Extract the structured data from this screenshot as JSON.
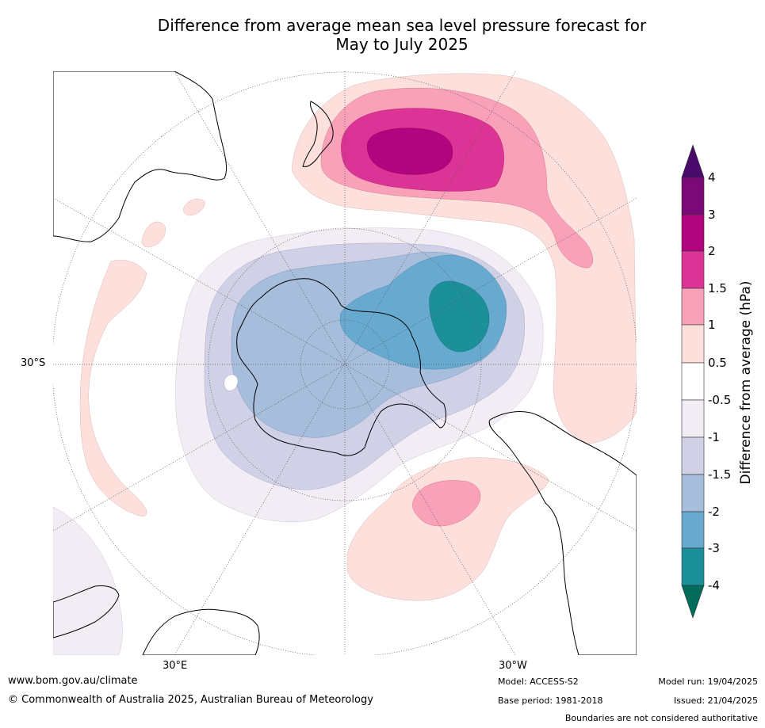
{
  "title_line1": "Difference from average mean sea level pressure forecast for",
  "title_line2": "May to July 2025",
  "map_labels": {
    "lat_30s": "30°S",
    "lon_30e": "30°E",
    "lon_30w": "30°W"
  },
  "colorbar": {
    "title": "Difference from average (hPa)",
    "tick_labels": [
      "4",
      "3",
      "2",
      "1.5",
      "1",
      "0.5",
      "-0.5",
      "-1",
      "-1.5",
      "-2",
      "-3",
      "-4"
    ],
    "colors": {
      "above_4": "#4a0a6b",
      "3_to_4": "#7a0a78",
      "2_to_3": "#b0057e",
      "1.5_to_2": "#dc3496",
      "1_to_1.5": "#f9a1b8",
      "0.5_to_1": "#fde0dc",
      "neutral": "#ffffff",
      "-1_to_-0.5": "#f2ecf4",
      "-1.5_to_-1": "#d0d1e6",
      "-2_to_-1.5": "#a6bddb",
      "-3_to_-2": "#67a9cf",
      "-4_to_-3": "#1c9099",
      "below_-4": "#016c59"
    }
  },
  "footer": {
    "website": "www.bom.gov.au/climate",
    "copyright": "© Commonwealth of Australia 2025, Australian Bureau of Meteorology",
    "model": "Model: ACCESS-S2",
    "base_period": "Base period: 1981-2018",
    "model_run": "Model run: 19/04/2025",
    "issued": "Issued: 21/04/2025",
    "disclaimer": "Boundaries are not considered authoritative"
  }
}
